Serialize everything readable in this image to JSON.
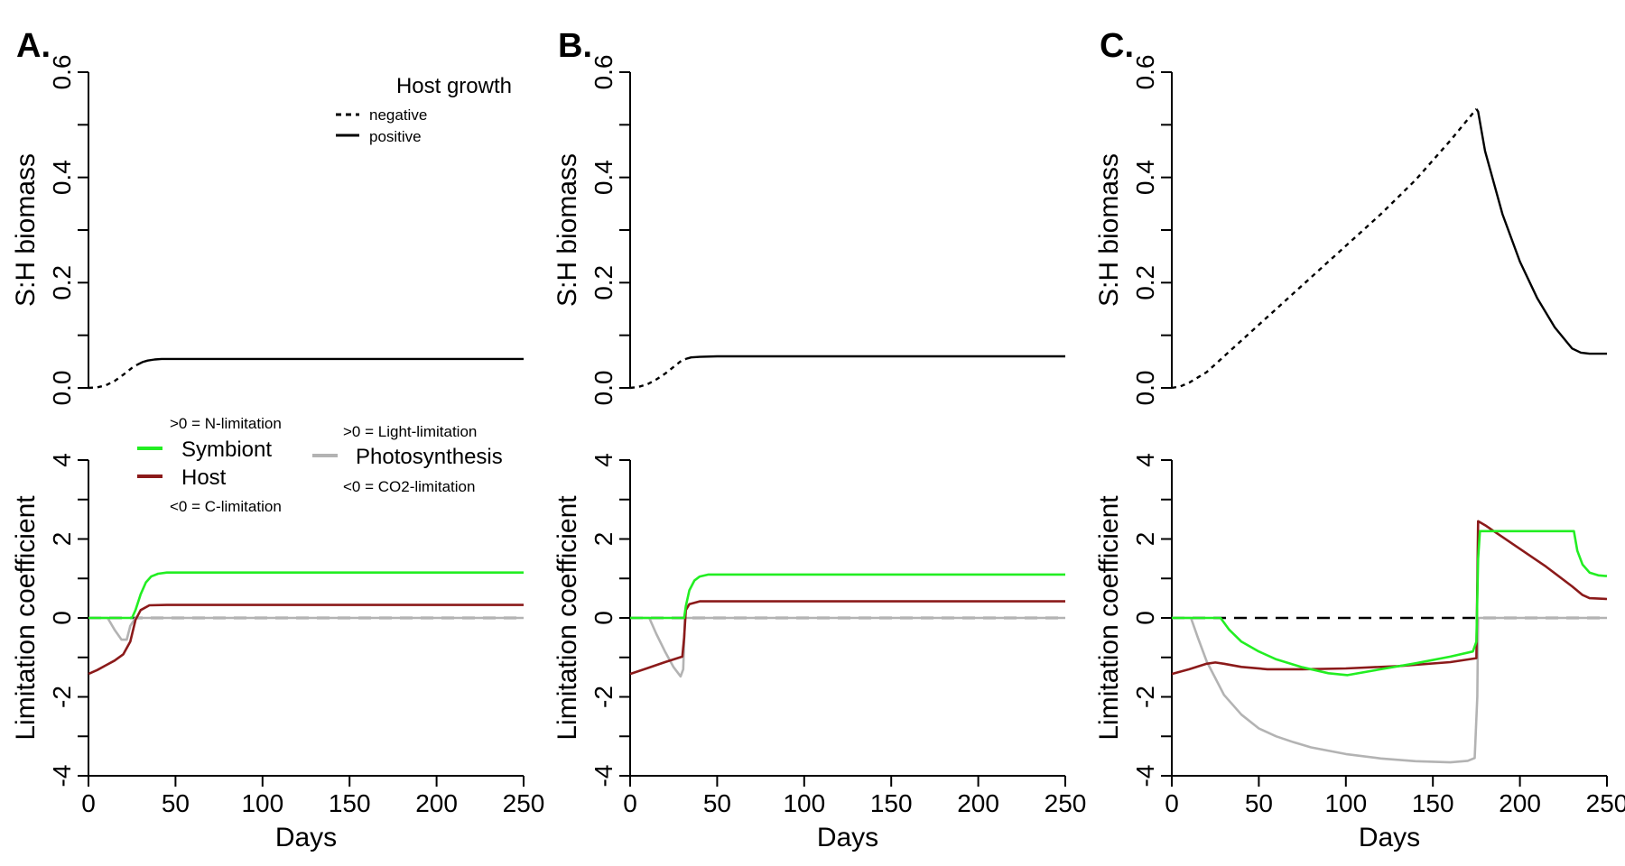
{
  "figure": {
    "panels": [
      "A.",
      "B.",
      "C."
    ],
    "legend_growth": {
      "title": "Host growth",
      "items": [
        "negative",
        "positive"
      ]
    },
    "legend_limitation": {
      "n_limitation": ">0 = N-limitation",
      "c_limitation": "<0 = C-limitation",
      "symbiont": "Symbiont",
      "host": "Host",
      "light_limitation": ">0 = Light-limitation",
      "photosynthesis": "Photosynthesis",
      "co2_limitation": "<0 = CO2-limitation"
    }
  },
  "colors": {
    "symbiont": "#22ee22",
    "host": "#8b1a1a",
    "photosynthesis": "#b3b3b3",
    "axis": "#000000"
  },
  "chart_data": [
    {
      "panel": "A.",
      "type": "line",
      "ylabel": "S:H biomass",
      "xlabel": "",
      "xlim": [
        0,
        250
      ],
      "ylim": [
        0,
        0.6
      ],
      "xticks": [],
      "yticks": [
        "0.0",
        "0.2",
        "0.4",
        "0.6"
      ],
      "series": [
        {
          "name": "negative",
          "style": "dashed",
          "x": [
            0,
            5,
            10,
            15,
            20,
            25,
            28
          ],
          "y": [
            0,
            0.001,
            0.005,
            0.013,
            0.025,
            0.038,
            0.044
          ]
        },
        {
          "name": "positive",
          "style": "solid",
          "x": [
            28,
            31,
            34,
            38,
            42,
            50,
            100,
            150,
            200,
            250
          ],
          "y": [
            0.044,
            0.049,
            0.052,
            0.054,
            0.055,
            0.055,
            0.055,
            0.055,
            0.055,
            0.055
          ]
        }
      ]
    },
    {
      "panel": "A.",
      "type": "line",
      "ylabel": "Limitation coefficient",
      "xlabel": "Days",
      "xlim": [
        0,
        250
      ],
      "ylim": [
        -4,
        4
      ],
      "xticks": [
        "0",
        "50",
        "100",
        "150",
        "200",
        "250"
      ],
      "yticks": [
        "-4",
        "-2",
        "0",
        "2",
        "4"
      ],
      "zero_line": 0,
      "series": [
        {
          "name": "Symbiont",
          "x": [
            0,
            25,
            27,
            30,
            33,
            36,
            40,
            45,
            60,
            100,
            250
          ],
          "y": [
            0,
            0,
            0.2,
            0.6,
            0.9,
            1.05,
            1.12,
            1.15,
            1.15,
            1.15,
            1.15
          ]
        },
        {
          "name": "Host",
          "x": [
            0,
            5,
            10,
            15,
            20,
            24,
            27,
            30,
            35,
            45,
            100,
            250
          ],
          "y": [
            -1.42,
            -1.32,
            -1.2,
            -1.08,
            -0.92,
            -0.6,
            -0.05,
            0.2,
            0.32,
            0.33,
            0.33,
            0.33
          ]
        },
        {
          "name": "Photosynthesis",
          "x": [
            0,
            11,
            15,
            19,
            22,
            24,
            27,
            30,
            250
          ],
          "y": [
            0,
            0,
            -0.3,
            -0.55,
            -0.55,
            -0.2,
            0,
            0,
            0
          ]
        }
      ]
    },
    {
      "panel": "B.",
      "type": "line",
      "ylabel": "S:H biomass",
      "xlabel": "",
      "xlim": [
        0,
        250
      ],
      "ylim": [
        0,
        0.6
      ],
      "xticks": [],
      "yticks": [
        "0.0",
        "0.2",
        "0.4",
        "0.6"
      ],
      "series": [
        {
          "name": "negative",
          "style": "dashed",
          "x": [
            0,
            5,
            10,
            15,
            20,
            25,
            30,
            32
          ],
          "y": [
            0,
            0.002,
            0.007,
            0.016,
            0.027,
            0.04,
            0.053,
            0.055
          ]
        },
        {
          "name": "positive",
          "style": "solid",
          "x": [
            32,
            35,
            40,
            50,
            100,
            150,
            200,
            250
          ],
          "y": [
            0.055,
            0.058,
            0.059,
            0.06,
            0.06,
            0.06,
            0.06,
            0.06
          ]
        }
      ]
    },
    {
      "panel": "B.",
      "type": "line",
      "ylabel": "Limitation coefficient",
      "xlabel": "Days",
      "xlim": [
        0,
        250
      ],
      "ylim": [
        -4,
        4
      ],
      "xticks": [
        "0",
        "50",
        "100",
        "150",
        "200",
        "250"
      ],
      "yticks": [
        "-4",
        "-2",
        "0",
        "2",
        "4"
      ],
      "zero_line": 0,
      "series": [
        {
          "name": "Symbiont",
          "x": [
            0,
            31,
            32,
            34,
            37,
            40,
            45,
            60,
            250
          ],
          "y": [
            0,
            0,
            0.3,
            0.7,
            0.95,
            1.05,
            1.1,
            1.1,
            1.1
          ]
        },
        {
          "name": "Host",
          "x": [
            0,
            10,
            20,
            30,
            31,
            32,
            34,
            40,
            60,
            250
          ],
          "y": [
            -1.42,
            -1.27,
            -1.12,
            -0.98,
            -0.5,
            0.2,
            0.35,
            0.42,
            0.42,
            0.42
          ]
        },
        {
          "name": "Photosynthesis",
          "x": [
            0,
            11,
            15,
            20,
            25,
            29,
            30.5,
            31.5,
            250
          ],
          "y": [
            0,
            0,
            -0.4,
            -0.85,
            -1.25,
            -1.48,
            -1.3,
            0,
            0
          ]
        }
      ]
    },
    {
      "panel": "C.",
      "type": "line",
      "ylabel": "S:H biomass",
      "xlabel": "",
      "xlim": [
        0,
        250
      ],
      "ylim": [
        0,
        0.6
      ],
      "xticks": [],
      "yticks": [
        "0.0",
        "0.2",
        "0.4",
        "0.6"
      ],
      "series": [
        {
          "name": "negative",
          "style": "dashed",
          "x": [
            0,
            5,
            10,
            20,
            40,
            60,
            80,
            100,
            120,
            140,
            160,
            175
          ],
          "y": [
            0,
            0.003,
            0.01,
            0.03,
            0.09,
            0.15,
            0.21,
            0.27,
            0.33,
            0.395,
            0.47,
            0.53
          ]
        },
        {
          "name": "positive",
          "style": "solid",
          "x": [
            175,
            176,
            180,
            190,
            200,
            210,
            220,
            230,
            235,
            240,
            250
          ],
          "y": [
            0.53,
            0.525,
            0.45,
            0.33,
            0.24,
            0.17,
            0.115,
            0.075,
            0.067,
            0.065,
            0.065
          ]
        }
      ]
    },
    {
      "panel": "C.",
      "type": "line",
      "ylabel": "Limitation coefficient",
      "xlabel": "Days",
      "xlim": [
        0,
        250
      ],
      "ylim": [
        -4,
        4
      ],
      "xticks": [
        "0",
        "50",
        "100",
        "150",
        "200",
        "250"
      ],
      "yticks": [
        "-4",
        "-2",
        "0",
        "2",
        "4"
      ],
      "zero_line": 0,
      "series": [
        {
          "name": "Symbiont",
          "x": [
            0,
            28,
            33,
            40,
            50,
            60,
            75,
            90,
            101,
            120,
            140,
            160,
            173,
            175,
            176,
            177,
            180,
            231,
            233,
            236,
            240,
            245,
            250
          ],
          "y": [
            0,
            0,
            -0.3,
            -0.6,
            -0.85,
            -1.05,
            -1.25,
            -1.4,
            -1.45,
            -1.3,
            -1.15,
            -0.98,
            -0.85,
            -0.6,
            1.5,
            2.2,
            2.2,
            2.2,
            1.7,
            1.35,
            1.15,
            1.08,
            1.06
          ]
        },
        {
          "name": "Host",
          "x": [
            0,
            10,
            20,
            25,
            30,
            40,
            55,
            75,
            100,
            130,
            160,
            175,
            176,
            180,
            190,
            200,
            215,
            230,
            236,
            240,
            250
          ],
          "y": [
            -1.42,
            -1.3,
            -1.16,
            -1.13,
            -1.16,
            -1.24,
            -1.3,
            -1.3,
            -1.28,
            -1.22,
            -1.12,
            -1.02,
            2.45,
            2.35,
            2.05,
            1.75,
            1.3,
            0.8,
            0.58,
            0.5,
            0.48
          ]
        },
        {
          "name": "Photosynthesis",
          "x": [
            0,
            11,
            15,
            20,
            30,
            40,
            50,
            60,
            70,
            80,
            100,
            120,
            140,
            160,
            170,
            174,
            175.5,
            176,
            250
          ],
          "y": [
            0,
            0,
            -0.5,
            -1.1,
            -1.95,
            -2.45,
            -2.8,
            -3.0,
            -3.15,
            -3.28,
            -3.45,
            -3.56,
            -3.63,
            -3.66,
            -3.62,
            -3.55,
            -2,
            0,
            0
          ]
        }
      ]
    }
  ]
}
